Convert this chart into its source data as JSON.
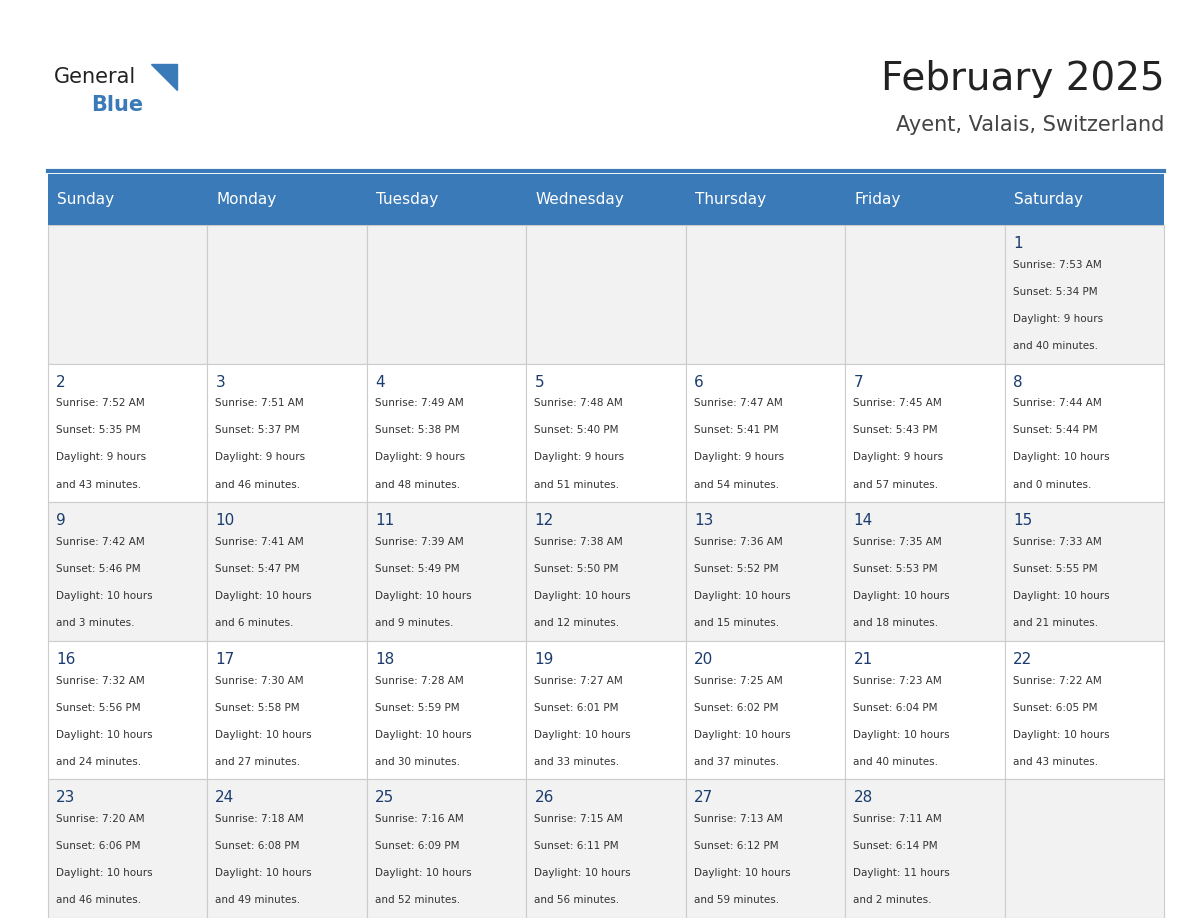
{
  "title": "February 2025",
  "subtitle": "Ayent, Valais, Switzerland",
  "days_of_week": [
    "Sunday",
    "Monday",
    "Tuesday",
    "Wednesday",
    "Thursday",
    "Friday",
    "Saturday"
  ],
  "header_bg": "#3a7ab8",
  "header_text": "#ffffff",
  "cell_bg_odd": "#f2f2f2",
  "cell_bg_even": "#ffffff",
  "day_number_color": "#1a3c6e",
  "text_color": "#333333",
  "logo_general_color": "#222222",
  "logo_blue_color": "#3a7ab8",
  "title_color": "#222222",
  "subtitle_color": "#444444",
  "calendar_data": [
    [
      null,
      null,
      null,
      null,
      null,
      null,
      1
    ],
    [
      2,
      3,
      4,
      5,
      6,
      7,
      8
    ],
    [
      9,
      10,
      11,
      12,
      13,
      14,
      15
    ],
    [
      16,
      17,
      18,
      19,
      20,
      21,
      22
    ],
    [
      23,
      24,
      25,
      26,
      27,
      28,
      null
    ]
  ],
  "cell_info": {
    "1": {
      "sunrise": "7:53 AM",
      "sunset": "5:34 PM",
      "daylight": "9 hours and 40 minutes."
    },
    "2": {
      "sunrise": "7:52 AM",
      "sunset": "5:35 PM",
      "daylight": "9 hours and 43 minutes."
    },
    "3": {
      "sunrise": "7:51 AM",
      "sunset": "5:37 PM",
      "daylight": "9 hours and 46 minutes."
    },
    "4": {
      "sunrise": "7:49 AM",
      "sunset": "5:38 PM",
      "daylight": "9 hours and 48 minutes."
    },
    "5": {
      "sunrise": "7:48 AM",
      "sunset": "5:40 PM",
      "daylight": "9 hours and 51 minutes."
    },
    "6": {
      "sunrise": "7:47 AM",
      "sunset": "5:41 PM",
      "daylight": "9 hours and 54 minutes."
    },
    "7": {
      "sunrise": "7:45 AM",
      "sunset": "5:43 PM",
      "daylight": "9 hours and 57 minutes."
    },
    "8": {
      "sunrise": "7:44 AM",
      "sunset": "5:44 PM",
      "daylight": "10 hours and 0 minutes."
    },
    "9": {
      "sunrise": "7:42 AM",
      "sunset": "5:46 PM",
      "daylight": "10 hours and 3 minutes."
    },
    "10": {
      "sunrise": "7:41 AM",
      "sunset": "5:47 PM",
      "daylight": "10 hours and 6 minutes."
    },
    "11": {
      "sunrise": "7:39 AM",
      "sunset": "5:49 PM",
      "daylight": "10 hours and 9 minutes."
    },
    "12": {
      "sunrise": "7:38 AM",
      "sunset": "5:50 PM",
      "daylight": "10 hours and 12 minutes."
    },
    "13": {
      "sunrise": "7:36 AM",
      "sunset": "5:52 PM",
      "daylight": "10 hours and 15 minutes."
    },
    "14": {
      "sunrise": "7:35 AM",
      "sunset": "5:53 PM",
      "daylight": "10 hours and 18 minutes."
    },
    "15": {
      "sunrise": "7:33 AM",
      "sunset": "5:55 PM",
      "daylight": "10 hours and 21 minutes."
    },
    "16": {
      "sunrise": "7:32 AM",
      "sunset": "5:56 PM",
      "daylight": "10 hours and 24 minutes."
    },
    "17": {
      "sunrise": "7:30 AM",
      "sunset": "5:58 PM",
      "daylight": "10 hours and 27 minutes."
    },
    "18": {
      "sunrise": "7:28 AM",
      "sunset": "5:59 PM",
      "daylight": "10 hours and 30 minutes."
    },
    "19": {
      "sunrise": "7:27 AM",
      "sunset": "6:01 PM",
      "daylight": "10 hours and 33 minutes."
    },
    "20": {
      "sunrise": "7:25 AM",
      "sunset": "6:02 PM",
      "daylight": "10 hours and 37 minutes."
    },
    "21": {
      "sunrise": "7:23 AM",
      "sunset": "6:04 PM",
      "daylight": "10 hours and 40 minutes."
    },
    "22": {
      "sunrise": "7:22 AM",
      "sunset": "6:05 PM",
      "daylight": "10 hours and 43 minutes."
    },
    "23": {
      "sunrise": "7:20 AM",
      "sunset": "6:06 PM",
      "daylight": "10 hours and 46 minutes."
    },
    "24": {
      "sunrise": "7:18 AM",
      "sunset": "6:08 PM",
      "daylight": "10 hours and 49 minutes."
    },
    "25": {
      "sunrise": "7:16 AM",
      "sunset": "6:09 PM",
      "daylight": "10 hours and 52 minutes."
    },
    "26": {
      "sunrise": "7:15 AM",
      "sunset": "6:11 PM",
      "daylight": "10 hours and 56 minutes."
    },
    "27": {
      "sunrise": "7:13 AM",
      "sunset": "6:12 PM",
      "daylight": "10 hours and 59 minutes."
    },
    "28": {
      "sunrise": "7:11 AM",
      "sunset": "6:14 PM",
      "daylight": "11 hours and 2 minutes."
    }
  }
}
